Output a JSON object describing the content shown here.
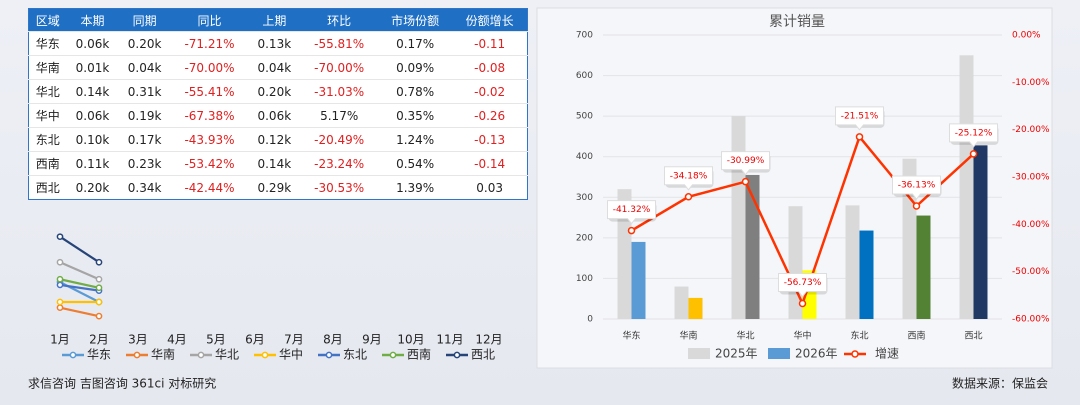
{
  "table": {
    "columns": [
      "区域",
      "本期",
      "同期",
      "同比",
      "上期",
      "环比",
      "市场份额",
      "份额增长"
    ],
    "rows": [
      [
        "华东",
        "0.06k",
        "0.20k",
        "-71.21%",
        "0.13k",
        "-55.81%",
        "0.17%",
        "-0.11"
      ],
      [
        "华南",
        "0.01k",
        "0.04k",
        "-70.00%",
        "0.04k",
        "-70.00%",
        "0.09%",
        "-0.08"
      ],
      [
        "华北",
        "0.14k",
        "0.31k",
        "-55.41%",
        "0.20k",
        "-31.03%",
        "0.78%",
        "-0.02"
      ],
      [
        "华中",
        "0.06k",
        "0.19k",
        "-67.38%",
        "0.06k",
        "5.17%",
        "0.35%",
        "-0.26"
      ],
      [
        "东北",
        "0.10k",
        "0.17k",
        "-43.93%",
        "0.12k",
        "-20.49%",
        "1.24%",
        "-0.13"
      ],
      [
        "西南",
        "0.11k",
        "0.23k",
        "-53.42%",
        "0.14k",
        "-23.24%",
        "0.54%",
        "-0.14"
      ],
      [
        "西北",
        "0.20k",
        "0.34k",
        "-42.44%",
        "0.29k",
        "-30.53%",
        "1.39%",
        "0.03"
      ]
    ]
  },
  "chart_data": [
    {
      "type": "line",
      "categories": [
        "1月",
        "2月",
        "3月",
        "4月",
        "5月",
        "6月",
        "7月",
        "8月",
        "9月",
        "10月",
        "11月",
        "12月"
      ],
      "ylim": [
        0,
        310
      ],
      "series": [
        {
          "name": "华东",
          "color": "#5b9bd5",
          "values": [
            130,
            60,
            null,
            null,
            null,
            null,
            null,
            null,
            null,
            null,
            null,
            null
          ]
        },
        {
          "name": "华南",
          "color": "#ed7d31",
          "values": [
            40,
            10,
            null,
            null,
            null,
            null,
            null,
            null,
            null,
            null,
            null,
            null
          ]
        },
        {
          "name": "华北",
          "color": "#a5a5a5",
          "values": [
            200,
            140,
            null,
            null,
            null,
            null,
            null,
            null,
            null,
            null,
            null,
            null
          ]
        },
        {
          "name": "华中",
          "color": "#ffc000",
          "values": [
            60,
            60,
            null,
            null,
            null,
            null,
            null,
            null,
            null,
            null,
            null,
            null
          ]
        },
        {
          "name": "东北",
          "color": "#4472c4",
          "values": [
            120,
            100,
            null,
            null,
            null,
            null,
            null,
            null,
            null,
            null,
            null,
            null
          ]
        },
        {
          "name": "西南",
          "color": "#70ad47",
          "values": [
            140,
            110,
            null,
            null,
            null,
            null,
            null,
            null,
            null,
            null,
            null,
            null
          ]
        },
        {
          "name": "西北",
          "color": "#264478",
          "values": [
            290,
            200,
            null,
            null,
            null,
            null,
            null,
            null,
            null,
            null,
            null,
            null
          ]
        }
      ]
    },
    {
      "type": "bar",
      "title": "累计销量",
      "categories": [
        "华东",
        "华南",
        "华北",
        "华中",
        "东北",
        "西南",
        "西北"
      ],
      "ylim": [
        0,
        700
      ],
      "yticks": [
        0,
        100,
        200,
        300,
        400,
        500,
        600,
        700
      ],
      "y2lim": [
        -60,
        0
      ],
      "y2ticks": [
        {
          "value": 0,
          "label": "0.00%"
        },
        {
          "value": -10,
          "label": "-10.00%"
        },
        {
          "value": -20,
          "label": "-20.00%"
        },
        {
          "value": -30,
          "label": "-30.00%"
        },
        {
          "value": -40,
          "label": "-40.00%"
        },
        {
          "value": -50,
          "label": "-50.00%"
        },
        {
          "value": -60,
          "label": "-60.00%"
        }
      ],
      "grid": true,
      "series": [
        {
          "name": "2025年",
          "color": "#d9d9d9",
          "values": [
            320,
            80,
            500,
            278,
            280,
            395,
            650
          ]
        },
        {
          "name": "2026年",
          "color": "#5b9bd5",
          "colors": [
            "#5b9bd5",
            "#ffc000",
            "#7f7f7f",
            "#ffff00",
            "#0070c0",
            "#548235",
            "#1f3864"
          ],
          "values": [
            190,
            52,
            355,
            120,
            218,
            255,
            428
          ]
        },
        {
          "name": "增速",
          "type": "line",
          "axis": "y2",
          "color": "#ff3300",
          "values": [
            -41.32,
            -34.18,
            -30.99,
            -56.73,
            -21.51,
            -36.13,
            -25.12
          ],
          "value_labels": [
            "-41.32%",
            "-34.18%",
            "-30.99%",
            "-56.73%",
            "-21.51%",
            "-36.13%",
            "-25.12%"
          ]
        }
      ]
    }
  ],
  "footer": {
    "left": "求信咨询 吉图咨询 361ci 对标研究",
    "right": "数据来源：保监会"
  }
}
